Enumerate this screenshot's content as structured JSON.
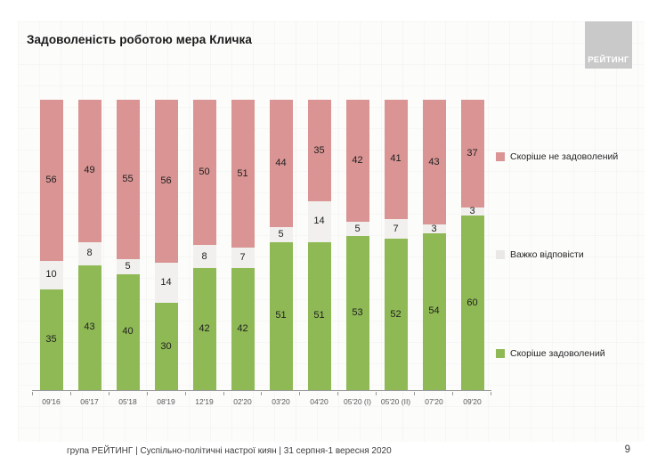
{
  "title": "Задоволеність роботою мера Кличка",
  "logo": {
    "text": "РЕЙТИНГ"
  },
  "chart_data": {
    "type": "bar",
    "stacked": true,
    "orientation": "vertical",
    "title": "Задоволеність роботою мера Кличка",
    "categories": [
      "09'16",
      "06'17",
      "05'18",
      "08'19",
      "12'19",
      "02'20",
      "03'20",
      "04'20",
      "05'20 (I)",
      "05'20 (II)",
      "07'20",
      "09'20"
    ],
    "series": [
      {
        "name": "Скоріше не задоволений",
        "color": "#d99493",
        "values": [
          56,
          49,
          55,
          56,
          50,
          51,
          44,
          35,
          42,
          41,
          43,
          37
        ]
      },
      {
        "name": "Важко відповісти",
        "color": "#f1f0ee",
        "values": [
          10,
          8,
          5,
          14,
          8,
          7,
          5,
          14,
          5,
          7,
          3,
          3
        ]
      },
      {
        "name": "Скоріше задоволений",
        "color": "#8eb954",
        "values": [
          35,
          43,
          40,
          30,
          42,
          42,
          51,
          51,
          53,
          52,
          54,
          60
        ]
      }
    ],
    "ylim": [
      0,
      100
    ],
    "value_labels": "inside",
    "grid": false,
    "legend_position": "right"
  },
  "footer": {
    "source": "група РЕЙТИНГ  |  Суспільно-політичні настрої киян | 31 серпня-1 вересня  2020",
    "page_number": "9"
  }
}
